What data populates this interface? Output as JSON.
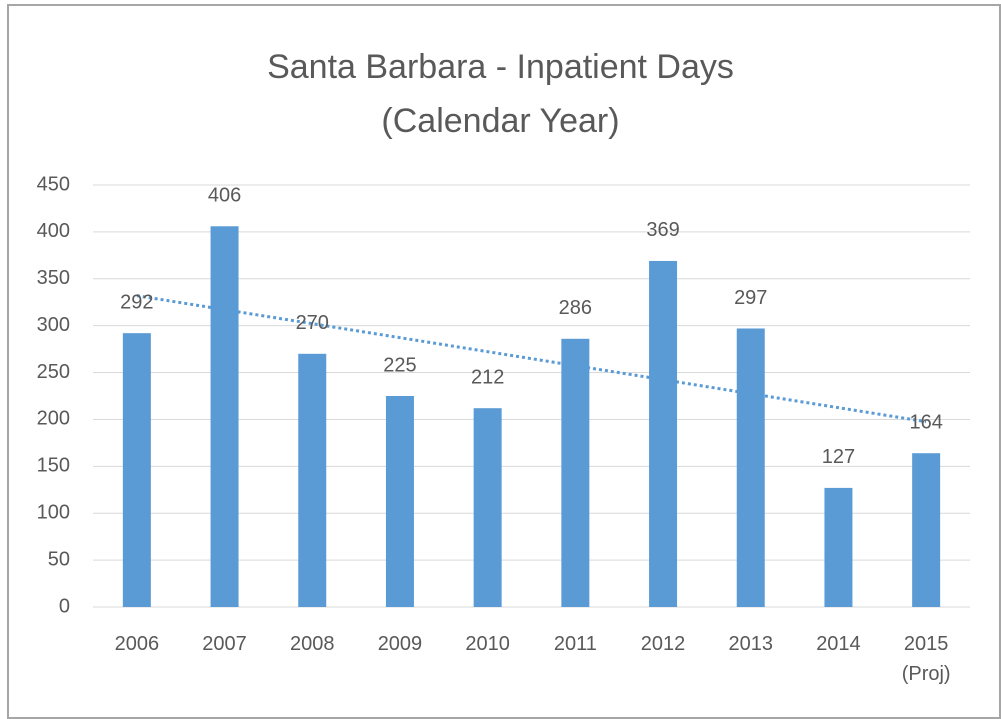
{
  "chart_data": {
    "type": "bar",
    "title": "Santa Barbara - Inpatient Days\n(Calendar Year)",
    "categories": [
      "2006",
      "2007",
      "2008",
      "2009",
      "2010",
      "2011",
      "2012",
      "2013",
      "2014",
      "2015\n(Proj)"
    ],
    "values": [
      292,
      406,
      270,
      225,
      212,
      286,
      369,
      297,
      127,
      164
    ],
    "color": "#5b9bd5",
    "ylim": [
      0,
      450
    ],
    "yticks": [
      0,
      50,
      100,
      150,
      200,
      250,
      300,
      350,
      400,
      450
    ],
    "grid": true,
    "trendline": "linear",
    "trendline_color": "#5b9bd5",
    "data_labels": true
  }
}
